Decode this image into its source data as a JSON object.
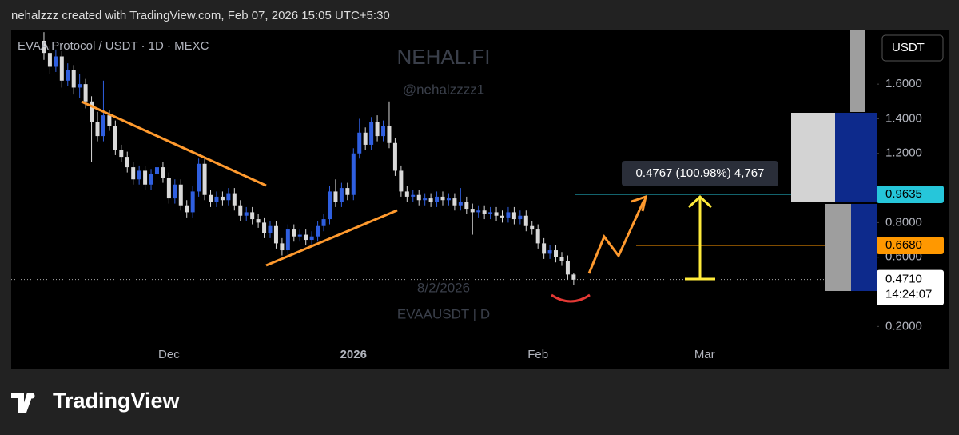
{
  "header": "nehalzzz created with TradingView.com, Feb 07, 2026 15:05 UTC+5:30",
  "footer": "TradingView",
  "chart_data": {
    "type": "candlestick",
    "title": "EVAA Protocol / USDT · 1D · MEXC",
    "watermark": "NEHAL.FI",
    "watermark_handle": "@nehalzzzz1",
    "watermark_date": "8/2/2026",
    "watermark_symbol": "EVAAUSDT | D",
    "currency": "USDT",
    "measure_label": "0.4767 (100.98%) 4,767",
    "up_color": "#2f5fe0",
    "down_color": "#d9d9d9",
    "xlim": [
      -5.5,
      139.9
    ],
    "xticks": [
      {
        "value": 21,
        "label": "Dec"
      },
      {
        "value": 52,
        "label": "2026"
      },
      {
        "value": 83,
        "label": "Feb"
      },
      {
        "value": 111,
        "label": "Mar"
      }
    ],
    "ylim": [
      0.1,
      1.91
    ],
    "yticks": [
      {
        "value": 0.2,
        "label": "0.2000"
      },
      {
        "value": 0.6,
        "label": "0.6000"
      },
      {
        "value": 0.8,
        "label": "0.8000"
      },
      {
        "value": 1.2,
        "label": "1.2000"
      },
      {
        "value": 1.4,
        "label": "1.4000"
      },
      {
        "value": 1.6,
        "label": "1.6000"
      }
    ],
    "price_levels": [
      {
        "value": 0.9635,
        "label": "0.9635",
        "color": "#26c6da"
      },
      {
        "value": 0.668,
        "label": "0.6680",
        "color": "#ff9800"
      }
    ],
    "last_price": {
      "value": 0.471,
      "label": "0.4710",
      "countdown": "14:24:07"
    },
    "candles": [
      [
        1.85,
        1.9,
        1.74,
        1.78
      ],
      [
        1.78,
        1.82,
        1.66,
        1.7
      ],
      [
        1.7,
        1.8,
        1.67,
        1.76
      ],
      [
        1.76,
        1.79,
        1.58,
        1.62
      ],
      [
        1.62,
        1.72,
        1.59,
        1.68
      ],
      [
        1.68,
        1.71,
        1.54,
        1.58
      ],
      [
        1.58,
        1.66,
        1.52,
        1.6
      ],
      [
        1.6,
        1.63,
        1.46,
        1.5
      ],
      [
        1.5,
        1.53,
        1.15,
        1.38
      ],
      [
        1.38,
        1.44,
        1.27,
        1.3
      ],
      [
        1.3,
        1.62,
        1.27,
        1.42
      ],
      [
        1.42,
        1.45,
        1.33,
        1.36
      ],
      [
        1.36,
        1.39,
        1.19,
        1.22
      ],
      [
        1.22,
        1.25,
        1.15,
        1.18
      ],
      [
        1.18,
        1.21,
        1.09,
        1.12
      ],
      [
        1.12,
        1.15,
        1.02,
        1.05
      ],
      [
        1.05,
        1.13,
        1.02,
        1.1
      ],
      [
        1.1,
        1.13,
        0.99,
        1.02
      ],
      [
        1.02,
        1.11,
        0.99,
        1.08
      ],
      [
        1.08,
        1.15,
        1.05,
        1.12
      ],
      [
        1.12,
        1.15,
        1.03,
        1.06
      ],
      [
        1.06,
        1.09,
        0.91,
        0.94
      ],
      [
        0.94,
        1.05,
        0.91,
        1.02
      ],
      [
        1.02,
        1.05,
        0.87,
        0.9
      ],
      [
        0.9,
        0.93,
        0.83,
        0.86
      ],
      [
        0.86,
        1.01,
        0.83,
        0.98
      ],
      [
        0.98,
        1.17,
        0.95,
        1.14
      ],
      [
        1.14,
        1.17,
        0.93,
        0.96
      ],
      [
        0.96,
        0.99,
        0.89,
        0.92
      ],
      [
        0.92,
        0.98,
        0.89,
        0.95
      ],
      [
        0.95,
        0.98,
        0.9,
        0.93
      ],
      [
        0.93,
        1.0,
        0.9,
        0.97
      ],
      [
        0.97,
        1.0,
        0.87,
        0.9
      ],
      [
        0.9,
        0.93,
        0.81,
        0.84
      ],
      [
        0.84,
        0.89,
        0.81,
        0.86
      ],
      [
        0.86,
        0.89,
        0.79,
        0.82
      ],
      [
        0.82,
        0.85,
        0.77,
        0.8
      ],
      [
        0.8,
        0.83,
        0.71,
        0.74
      ],
      [
        0.74,
        0.81,
        0.71,
        0.78
      ],
      [
        0.78,
        0.81,
        0.65,
        0.68
      ],
      [
        0.68,
        0.71,
        0.61,
        0.64
      ],
      [
        0.64,
        0.79,
        0.61,
        0.76
      ],
      [
        0.76,
        0.79,
        0.69,
        0.72
      ],
      [
        0.72,
        0.76,
        0.69,
        0.73
      ],
      [
        0.73,
        0.76,
        0.67,
        0.7
      ],
      [
        0.7,
        0.75,
        0.67,
        0.72
      ],
      [
        0.72,
        0.81,
        0.69,
        0.78
      ],
      [
        0.78,
        0.85,
        0.75,
        0.82
      ],
      [
        0.82,
        1.01,
        0.79,
        0.98
      ],
      [
        0.98,
        1.05,
        0.89,
        0.92
      ],
      [
        0.92,
        1.03,
        0.89,
        1.0
      ],
      [
        1.0,
        1.03,
        0.93,
        0.96
      ],
      [
        0.96,
        1.23,
        0.93,
        1.2
      ],
      [
        1.2,
        1.4,
        1.17,
        1.32
      ],
      [
        1.32,
        1.35,
        1.22,
        1.25
      ],
      [
        1.25,
        1.41,
        1.22,
        1.38
      ],
      [
        1.38,
        1.42,
        1.27,
        1.3
      ],
      [
        1.3,
        1.39,
        1.27,
        1.36
      ],
      [
        1.36,
        1.5,
        1.23,
        1.26
      ],
      [
        1.26,
        1.29,
        1.07,
        1.1
      ],
      [
        1.1,
        1.13,
        0.95,
        0.98
      ],
      [
        0.98,
        1.01,
        0.92,
        0.95
      ],
      [
        0.95,
        0.99,
        0.92,
        0.96
      ],
      [
        0.96,
        0.99,
        0.9,
        0.93
      ],
      [
        0.93,
        0.97,
        0.9,
        0.94
      ],
      [
        0.94,
        0.97,
        0.89,
        0.92
      ],
      [
        0.92,
        0.98,
        0.89,
        0.95
      ],
      [
        0.95,
        0.98,
        0.9,
        0.93
      ],
      [
        0.93,
        0.97,
        0.9,
        0.94
      ],
      [
        0.94,
        0.97,
        0.87,
        0.9
      ],
      [
        0.9,
        1.0,
        0.87,
        0.92
      ],
      [
        0.92,
        0.95,
        0.85,
        0.88
      ],
      [
        0.88,
        0.91,
        0.73,
        0.86
      ],
      [
        0.86,
        0.9,
        0.83,
        0.87
      ],
      [
        0.87,
        0.9,
        0.82,
        0.85
      ],
      [
        0.85,
        0.89,
        0.82,
        0.86
      ],
      [
        0.86,
        0.89,
        0.81,
        0.84
      ],
      [
        0.84,
        0.87,
        0.8,
        0.83
      ],
      [
        0.83,
        0.89,
        0.8,
        0.86
      ],
      [
        0.86,
        0.89,
        0.79,
        0.82
      ],
      [
        0.82,
        0.87,
        0.79,
        0.84
      ],
      [
        0.84,
        0.87,
        0.75,
        0.78
      ],
      [
        0.78,
        0.81,
        0.73,
        0.76
      ],
      [
        0.76,
        0.79,
        0.65,
        0.68
      ],
      [
        0.68,
        0.71,
        0.59,
        0.62
      ],
      [
        0.62,
        0.67,
        0.59,
        0.64
      ],
      [
        0.64,
        0.67,
        0.57,
        0.6
      ],
      [
        0.6,
        0.63,
        0.55,
        0.58
      ],
      [
        0.58,
        0.61,
        0.47,
        0.5
      ],
      [
        0.5,
        0.51,
        0.44,
        0.47
      ]
    ]
  }
}
